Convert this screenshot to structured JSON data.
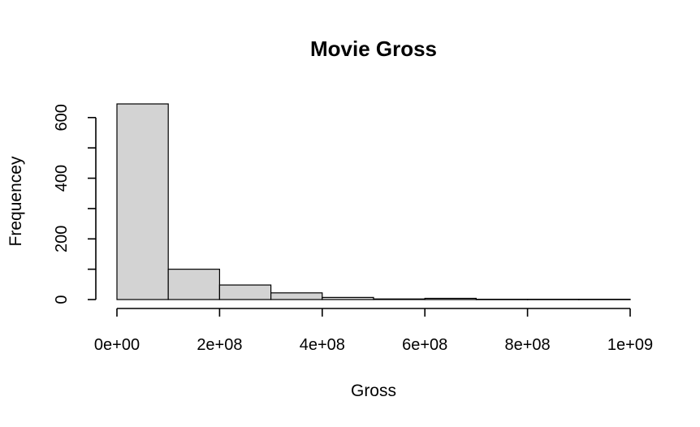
{
  "chart_data": {
    "type": "bar",
    "title": "Movie Gross",
    "xlabel": "Gross",
    "ylabel": "Frequencey",
    "bin_edges": [
      0,
      100000000,
      200000000,
      300000000,
      400000000,
      500000000,
      600000000,
      700000000,
      800000000,
      900000000,
      1000000000
    ],
    "values": [
      645,
      100,
      48,
      22,
      7,
      2,
      4,
      1,
      1,
      1
    ],
    "xlim": [
      0,
      1000000000
    ],
    "ylim": [
      0,
      645
    ],
    "x_ticks": [
      {
        "value": 0,
        "label": "0e+00"
      },
      {
        "value": 200000000,
        "label": "2e+08"
      },
      {
        "value": 400000000,
        "label": "4e+08"
      },
      {
        "value": 600000000,
        "label": "6e+08"
      },
      {
        "value": 800000000,
        "label": "8e+08"
      },
      {
        "value": 1000000000,
        "label": "1e+09"
      }
    ],
    "y_ticks": [
      {
        "value": 0,
        "label": "0"
      },
      {
        "value": 100,
        "label": ""
      },
      {
        "value": 200,
        "label": "200"
      },
      {
        "value": 300,
        "label": ""
      },
      {
        "value": 400,
        "label": "400"
      },
      {
        "value": 500,
        "label": ""
      },
      {
        "value": 600,
        "label": "600"
      }
    ],
    "bar_color": "#d3d3d3",
    "grid": false
  }
}
